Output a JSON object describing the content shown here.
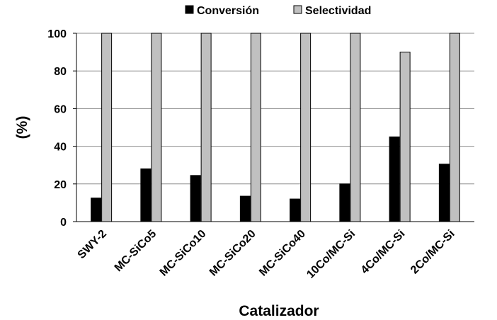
{
  "chart_data": {
    "type": "bar",
    "categories": [
      "SWY-2",
      "MC-SiCo5",
      "MC-SiCo10",
      "MC-SiCo20",
      "MC-SiCo40",
      "10Co/MC-Si",
      "4Co/MC-Si",
      "2Co/MC-Si"
    ],
    "series": [
      {
        "name": "Conversión",
        "color": "#000000",
        "values": [
          12.5,
          28,
          24.5,
          13.5,
          12,
          20,
          45,
          30.5
        ]
      },
      {
        "name": "Selectividad",
        "color": "#c0c0c0",
        "values": [
          100,
          100,
          100,
          100,
          100,
          100,
          90,
          100
        ]
      }
    ],
    "xlabel": "Catalizador",
    "ylabel": "(%)",
    "ylim": [
      0,
      100
    ],
    "yticks": [
      0,
      20,
      40,
      60,
      80,
      100
    ],
    "grid": true,
    "legend": "top"
  }
}
